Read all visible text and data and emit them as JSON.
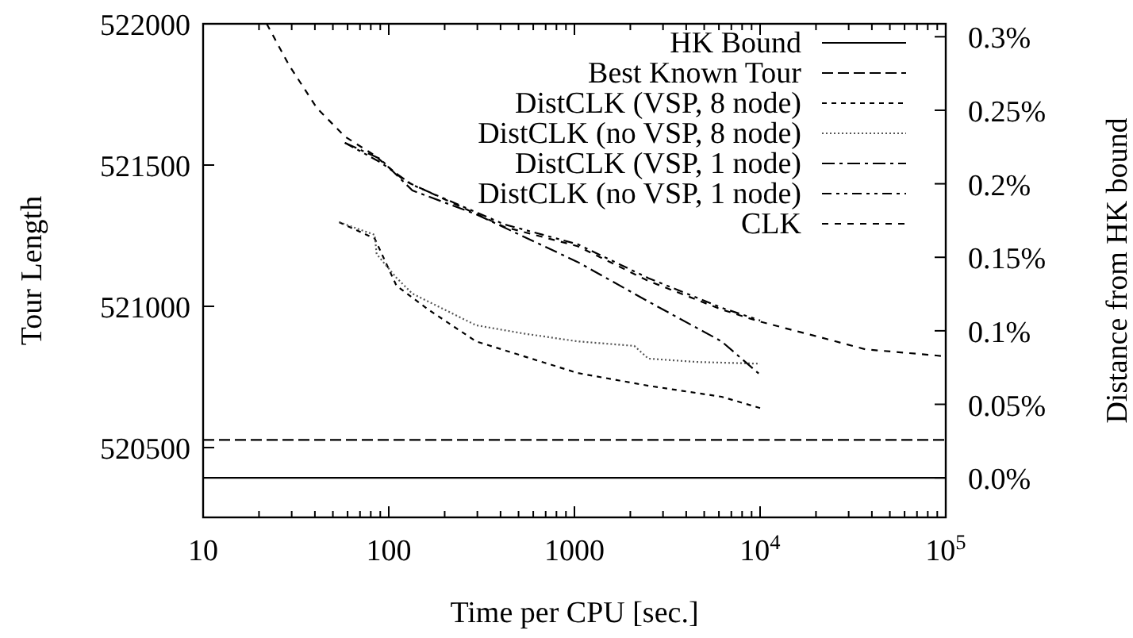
{
  "chart_data": {
    "type": "line",
    "xlabel": "Time per CPU [sec.]",
    "ylabel": "Tour Length",
    "y2label": "Distance from HK bound",
    "log": "x",
    "legend": "top right",
    "grid": false,
    "xlim": [
      10,
      100000
    ],
    "xticks": [
      10,
      {
        "value": 20,
        "label": null
      },
      {
        "value": 30,
        "label": null
      },
      {
        "value": 40,
        "label": null
      },
      {
        "value": 50,
        "label": null
      },
      {
        "value": 60,
        "label": null
      },
      {
        "value": 70,
        "label": null
      },
      {
        "value": 80,
        "label": null
      },
      {
        "value": 90,
        "label": null
      },
      100,
      {
        "value": 200,
        "label": null
      },
      {
        "value": 300,
        "label": null
      },
      {
        "value": 400,
        "label": null
      },
      {
        "value": 500,
        "label": null
      },
      {
        "value": 600,
        "label": null
      },
      {
        "value": 700,
        "label": null
      },
      {
        "value": 800,
        "label": null
      },
      {
        "value": 900,
        "label": null
      },
      1000,
      {
        "value": 2000,
        "label": null
      },
      {
        "value": 3000,
        "label": null
      },
      {
        "value": 4000,
        "label": null
      },
      {
        "value": 5000,
        "label": null
      },
      {
        "value": 6000,
        "label": null
      },
      {
        "value": 7000,
        "label": null
      },
      {
        "value": 8000,
        "label": null
      },
      {
        "value": 9000,
        "label": null
      },
      {
        "value": 10000,
        "label": "10$^{4}$"
      },
      {
        "value": 20000,
        "label": null
      },
      {
        "value": 30000,
        "label": null
      },
      {
        "value": 40000,
        "label": null
      },
      {
        "value": 50000,
        "label": null
      },
      {
        "value": 60000,
        "label": null
      },
      {
        "value": 70000,
        "label": null
      },
      {
        "value": 80000,
        "label": null
      },
      {
        "value": 90000,
        "label": null
      },
      {
        "value": 100000,
        "label": "10$^{5}$"
      }
    ],
    "ylim": [
      520253,
      522000
    ],
    "yticks": [
      520500,
      521000,
      521500,
      522000
    ],
    "y2lim": [
      -0.0269,
      0.3088
    ],
    "y2ticks": [
      {
        "value": 0,
        "label": "0.0%"
      },
      {
        "value": 0.05,
        "label": "0.05%"
      },
      {
        "value": 0.1,
        "label": "0.1%"
      },
      {
        "value": 0.15,
        "label": "0.15%"
      },
      {
        "value": 0.2,
        "label": "0.2%"
      },
      {
        "value": 0.25,
        "label": "0.25%"
      },
      {
        "value": 0.3,
        "label": "0.3%"
      }
    ],
    "series": [
      {
        "name": "HK Bound",
        "color": "#000000",
        "line_style": "solid",
        "x": [
          10,
          100000
        ],
        "values": [
          520393,
          520393
        ]
      },
      {
        "name": "Best Known Tour",
        "color": "#000000",
        "line_style": "dashed",
        "x": [
          10,
          100000
        ],
        "values": [
          520527,
          520527
        ]
      },
      {
        "name": "DistCLK (VSP, 8 node)",
        "color": "#000000",
        "line_style": "dashed",
        "x": [
          54,
          84,
          110,
          163,
          295,
          1040,
          2500,
          6200,
          10000
        ],
        "values": [
          521298,
          521240,
          521073,
          520989,
          520876,
          520764,
          520719,
          520680,
          520640
        ]
      },
      {
        "name": "DistCLK (no VSP, 8 node)",
        "color": "#555555",
        "line_style": "dotted",
        "x": [
          54,
          84,
          86,
          110,
          134,
          295,
          530,
          1040,
          2100,
          2500,
          4600,
          10000
        ],
        "values": [
          521298,
          521253,
          521185,
          521101,
          521045,
          520933,
          520904,
          520876,
          520860,
          520815,
          520803,
          520797
        ]
      },
      {
        "name": "DistCLK (VSP, 1 node)",
        "color": "#000000",
        "line_style": "dashdot",
        "x": [
          58,
          90,
          134,
          295,
          1040,
          2500,
          6200,
          10000
        ],
        "values": [
          521579,
          521522,
          521410,
          521326,
          521157,
          521017,
          520876,
          520758
        ]
      },
      {
        "name": "DistCLK (no VSP, 1 node)",
        "color": "#000000",
        "line_style": "dashdot",
        "x": [
          58,
          90,
          134,
          420,
          1040,
          2500,
          6200,
          10000
        ],
        "values": [
          521579,
          521510,
          521430,
          521290,
          521220,
          521100,
          520995,
          520950
        ]
      },
      {
        "name": "CLK",
        "color": "#000000",
        "line_style": "dashed",
        "x": [
          22,
          29,
          41,
          58,
          84,
          122,
          420,
          1040,
          2500,
          6200,
          9600,
          23600,
          36800,
          89000,
          100000
        ],
        "values": [
          522000,
          521854,
          521702,
          521601,
          521534,
          521444,
          521281,
          521213,
          521090,
          520989,
          520949,
          520882,
          520848,
          520826,
          520822
        ]
      }
    ]
  }
}
